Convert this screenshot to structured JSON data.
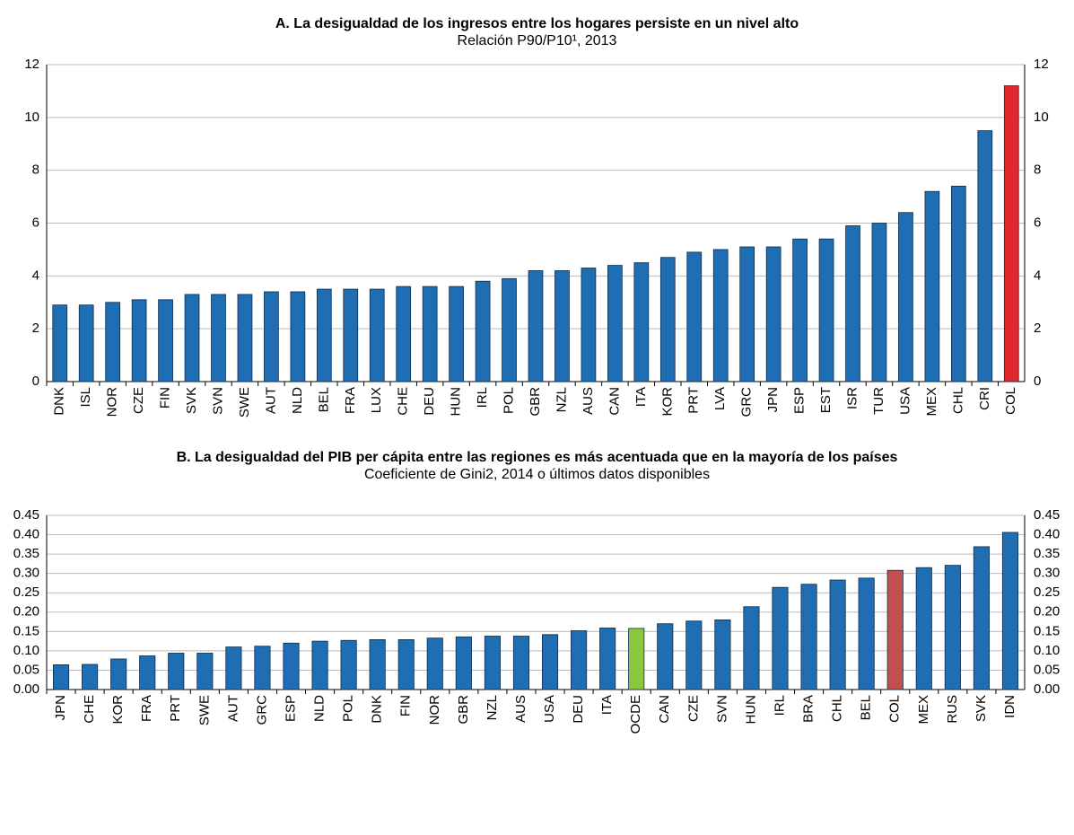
{
  "chart_data": [
    {
      "type": "bar",
      "title": "A. La desigualdad de los ingresos entre los hogares persiste en un nivel alto",
      "subtitle": "Relación P90/P10¹, 2013",
      "categories": [
        "DNK",
        "ISL",
        "NOR",
        "CZE",
        "FIN",
        "SVK",
        "SVN",
        "SWE",
        "AUT",
        "NLD",
        "BEL",
        "FRA",
        "LUX",
        "CHE",
        "DEU",
        "HUN",
        "IRL",
        "POL",
        "GBR",
        "NZL",
        "AUS",
        "CAN",
        "ITA",
        "KOR",
        "PRT",
        "LVA",
        "GRC",
        "JPN",
        "ESP",
        "EST",
        "ISR",
        "TUR",
        "USA",
        "MEX",
        "CHL",
        "CRI",
        "COL"
      ],
      "values": [
        2.9,
        2.9,
        3.0,
        3.1,
        3.1,
        3.3,
        3.3,
        3.3,
        3.4,
        3.4,
        3.5,
        3.5,
        3.5,
        3.6,
        3.6,
        3.6,
        3.8,
        3.9,
        4.2,
        4.2,
        4.3,
        4.4,
        4.5,
        4.7,
        4.9,
        5.0,
        5.1,
        5.1,
        5.4,
        5.4,
        5.9,
        6.0,
        6.4,
        7.2,
        7.4,
        9.5,
        11.2
      ],
      "colors": [
        "#1f6db3",
        "#1f6db3",
        "#1f6db3",
        "#1f6db3",
        "#1f6db3",
        "#1f6db3",
        "#1f6db3",
        "#1f6db3",
        "#1f6db3",
        "#1f6db3",
        "#1f6db3",
        "#1f6db3",
        "#1f6db3",
        "#1f6db3",
        "#1f6db3",
        "#1f6db3",
        "#1f6db3",
        "#1f6db3",
        "#1f6db3",
        "#1f6db3",
        "#1f6db3",
        "#1f6db3",
        "#1f6db3",
        "#1f6db3",
        "#1f6db3",
        "#1f6db3",
        "#1f6db3",
        "#1f6db3",
        "#1f6db3",
        "#1f6db3",
        "#1f6db3",
        "#1f6db3",
        "#1f6db3",
        "#1f6db3",
        "#1f6db3",
        "#1f6db3",
        "#e0282e"
      ],
      "ylim": [
        0,
        12
      ],
      "yticks": [
        0,
        2,
        4,
        6,
        8,
        10,
        12
      ],
      "grid": true
    },
    {
      "type": "bar",
      "title": "B. La desigualdad del PIB per cápita entre las regiones es más acentuada que en la mayoría de los países",
      "subtitle": "Coeficiente de Gini2, 2014 o últimos datos disponibles",
      "categories": [
        "JPN",
        "CHE",
        "KOR",
        "FRA",
        "PRT",
        "SWE",
        "AUT",
        "GRC",
        "ESP",
        "NLD",
        "POL",
        "DNK",
        "FIN",
        "NOR",
        "GBR",
        "NZL",
        "AUS",
        "USA",
        "DEU",
        "ITA",
        "OCDE",
        "CAN",
        "CZE",
        "SVN",
        "HUN",
        "IRL",
        "BRA",
        "CHL",
        "BEL",
        "COL",
        "MEX",
        "RUS",
        "SVK",
        "IDN"
      ],
      "values": [
        0.064,
        0.065,
        0.079,
        0.087,
        0.094,
        0.094,
        0.11,
        0.112,
        0.12,
        0.125,
        0.127,
        0.129,
        0.129,
        0.133,
        0.136,
        0.138,
        0.138,
        0.142,
        0.152,
        0.159,
        0.158,
        0.17,
        0.177,
        0.18,
        0.214,
        0.264,
        0.272,
        0.283,
        0.288,
        0.308,
        0.315,
        0.321,
        0.369,
        0.406
      ],
      "colors": [
        "#1f6db3",
        "#1f6db3",
        "#1f6db3",
        "#1f6db3",
        "#1f6db3",
        "#1f6db3",
        "#1f6db3",
        "#1f6db3",
        "#1f6db3",
        "#1f6db3",
        "#1f6db3",
        "#1f6db3",
        "#1f6db3",
        "#1f6db3",
        "#1f6db3",
        "#1f6db3",
        "#1f6db3",
        "#1f6db3",
        "#1f6db3",
        "#1f6db3",
        "#8cc63f",
        "#1f6db3",
        "#1f6db3",
        "#1f6db3",
        "#1f6db3",
        "#1f6db3",
        "#1f6db3",
        "#1f6db3",
        "#1f6db3",
        "#c0504d",
        "#1f6db3",
        "#1f6db3",
        "#1f6db3",
        "#1f6db3"
      ],
      "ylim": [
        0,
        0.45
      ],
      "yticks": [
        {
          "value": 0,
          "label": "0.00"
        },
        {
          "value": 0.05,
          "label": "0.05"
        },
        {
          "value": 0.1,
          "label": "0.10"
        },
        {
          "value": 0.15,
          "label": "0.15"
        },
        {
          "value": 0.2,
          "label": "0.20"
        },
        {
          "value": 0.25,
          "label": "0.25"
        },
        {
          "value": 0.3,
          "label": "0.30"
        },
        {
          "value": 0.35,
          "label": "0.35"
        },
        {
          "value": 0.4,
          "label": "0.40"
        },
        {
          "value": 0.45,
          "label": "0.45"
        }
      ],
      "grid": true
    }
  ]
}
